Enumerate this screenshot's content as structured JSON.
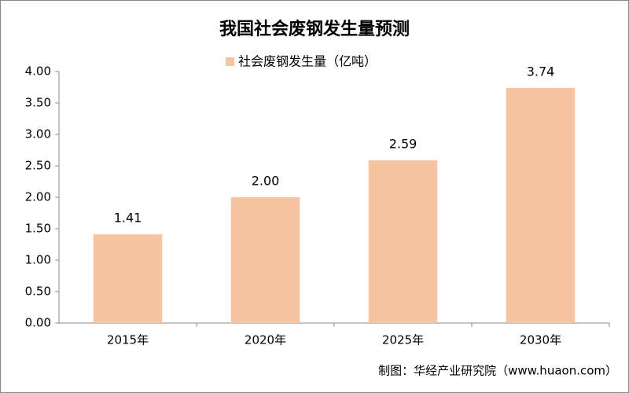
{
  "chart_data": {
    "type": "bar",
    "title": "我国社会废钢发生量预测",
    "legend": "社会废钢发生量（亿吨）",
    "categories": [
      "2015年",
      "2020年",
      "2025年",
      "2030年"
    ],
    "values": [
      1.41,
      2.0,
      2.59,
      3.74
    ],
    "value_labels": [
      "1.41",
      "2.00",
      "2.59",
      "3.74"
    ],
    "color": "#f6c4a0",
    "ylim": [
      0,
      4
    ],
    "yticks": [
      {
        "value": 0,
        "label": "0.00"
      },
      {
        "value": 0.5,
        "label": "0.50"
      },
      {
        "value": 1,
        "label": "1.00"
      },
      {
        "value": 1.5,
        "label": "1.50"
      },
      {
        "value": 2,
        "label": "2.00"
      },
      {
        "value": 2.5,
        "label": "2.50"
      },
      {
        "value": 3,
        "label": "3.00"
      },
      {
        "value": 3.5,
        "label": "3.50"
      },
      {
        "value": 4,
        "label": "4.00"
      }
    ],
    "source": "制图：华经产业研究院（www.huaon.com）"
  }
}
